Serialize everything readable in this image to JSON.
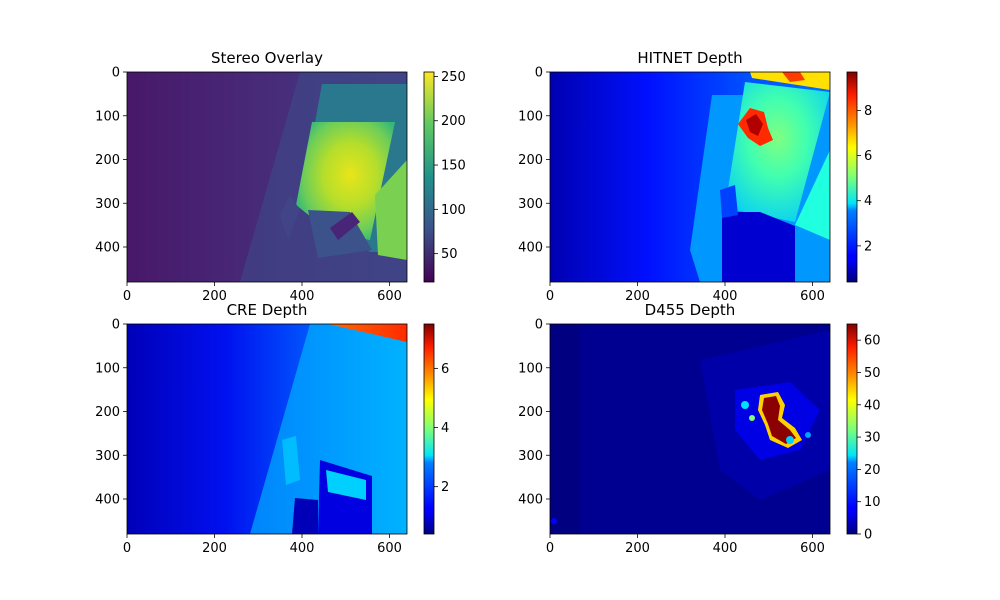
{
  "chart_data": [
    {
      "type": "heatmap",
      "title": "Stereo Overlay",
      "xlim": [
        0,
        640
      ],
      "ylim": [
        480,
        0
      ],
      "x_ticks": [
        0,
        200,
        400,
        600
      ],
      "y_ticks": [
        0,
        100,
        200,
        300,
        400
      ],
      "colormap": "viridis",
      "colorbar": {
        "min": 18,
        "max": 255,
        "ticks": [
          50,
          100,
          150,
          200,
          250
        ]
      }
    },
    {
      "type": "heatmap",
      "title": "HITNET Depth",
      "xlim": [
        0,
        640
      ],
      "ylim": [
        480,
        0
      ],
      "x_ticks": [
        0,
        200,
        400,
        600
      ],
      "y_ticks": [
        0,
        100,
        200,
        300,
        400
      ],
      "colormap": "jet",
      "colorbar": {
        "min": 0.4,
        "max": 9.7,
        "ticks": [
          2,
          4,
          6,
          8
        ]
      }
    },
    {
      "type": "heatmap",
      "title": "CRE Depth",
      "xlim": [
        0,
        640
      ],
      "ylim": [
        480,
        0
      ],
      "x_ticks": [
        0,
        200,
        400,
        600
      ],
      "y_ticks": [
        0,
        100,
        200,
        300,
        400
      ],
      "colormap": "jet",
      "colorbar": {
        "min": 0.4,
        "max": 7.5,
        "ticks": [
          2,
          4,
          6
        ]
      }
    },
    {
      "type": "heatmap",
      "title": "D455 Depth",
      "xlim": [
        0,
        640
      ],
      "ylim": [
        480,
        0
      ],
      "x_ticks": [
        0,
        200,
        400,
        600
      ],
      "y_ticks": [
        0,
        100,
        200,
        300,
        400
      ],
      "colormap": "jet",
      "colorbar": {
        "min": 0,
        "max": 65,
        "ticks": [
          0,
          10,
          20,
          30,
          40,
          50,
          60
        ]
      }
    }
  ]
}
